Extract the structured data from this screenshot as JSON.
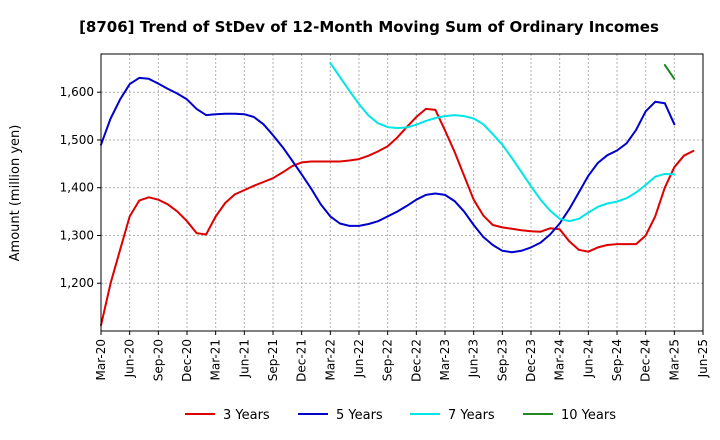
{
  "chart_data": {
    "type": "line",
    "title": "[8706]  Trend of StDev of 12-Month Moving Sum of Ordinary Incomes",
    "xlabel": "",
    "ylabel": "Amount (million yen)",
    "xlim": [
      "Mar-20",
      "Jun-25"
    ],
    "ylim": [
      1100,
      1680
    ],
    "y_ticks": [
      1200,
      1300,
      1400,
      1500,
      1600
    ],
    "y_tick_labels": [
      "1,200",
      "1,300",
      "1,400",
      "1,500",
      "1,600"
    ],
    "x_tick_labels": [
      "Mar-20",
      "Jun-20",
      "Sep-20",
      "Dec-20",
      "Mar-21",
      "Jun-21",
      "Sep-21",
      "Dec-21",
      "Mar-22",
      "Jun-22",
      "Sep-22",
      "Dec-22",
      "Mar-23",
      "Jun-23",
      "Sep-23",
      "Dec-23",
      "Mar-24",
      "Jun-24",
      "Sep-24",
      "Dec-24",
      "Mar-25",
      "Jun-25"
    ],
    "grid": true,
    "legend_position": "bottom",
    "series": [
      {
        "name": "3 Years",
        "color": "#dd0000",
        "start_month_index": 0,
        "values": [
          1112,
          1200,
          1270,
          1340,
          1373,
          1380,
          1375,
          1365,
          1350,
          1330,
          1305,
          1302,
          1340,
          1368,
          1386,
          1395,
          1404,
          1412,
          1420,
          1432,
          1445,
          1453,
          1455,
          1455,
          1455,
          1455,
          1457,
          1460,
          1467,
          1476,
          1487,
          1505,
          1527,
          1548,
          1565,
          1563,
          1520,
          1475,
          1425,
          1375,
          1342,
          1322,
          1317,
          1314,
          1311,
          1309,
          1308,
          1315,
          1313,
          1288,
          1270,
          1266,
          1275,
          1280,
          1282,
          1282,
          1282,
          1300,
          1340,
          1400,
          1443,
          1467,
          1477
        ]
      },
      {
        "name": "5 Years",
        "color": "#0000cc",
        "start_month_index": 0,
        "values": [
          1490,
          1545,
          1585,
          1617,
          1630,
          1628,
          1618,
          1607,
          1597,
          1585,
          1565,
          1552,
          1554,
          1555,
          1555,
          1554,
          1548,
          1533,
          1510,
          1485,
          1457,
          1428,
          1398,
          1365,
          1340,
          1325,
          1320,
          1320,
          1324,
          1330,
          1340,
          1350,
          1362,
          1375,
          1385,
          1388,
          1385,
          1372,
          1350,
          1322,
          1297,
          1280,
          1268,
          1265,
          1268,
          1275,
          1285,
          1302,
          1325,
          1355,
          1390,
          1425,
          1452,
          1468,
          1478,
          1493,
          1521,
          1560,
          1580,
          1577,
          1533
        ]
      },
      {
        "name": "7 Years",
        "color": "#00e5e5",
        "start_month_index": 24,
        "values": [
          1661,
          1632,
          1603,
          1575,
          1551,
          1535,
          1527,
          1525,
          1526,
          1532,
          1540,
          1546,
          1550,
          1552,
          1550,
          1545,
          1533,
          1512,
          1490,
          1462,
          1433,
          1403,
          1375,
          1352,
          1335,
          1330,
          1335,
          1348,
          1360,
          1367,
          1371,
          1378,
          1390,
          1406,
          1423,
          1429,
          1428
        ]
      },
      {
        "name": "10 Years",
        "color": "#228822",
        "start_month_index": 59,
        "values": [
          1657,
          1628
        ]
      }
    ]
  }
}
